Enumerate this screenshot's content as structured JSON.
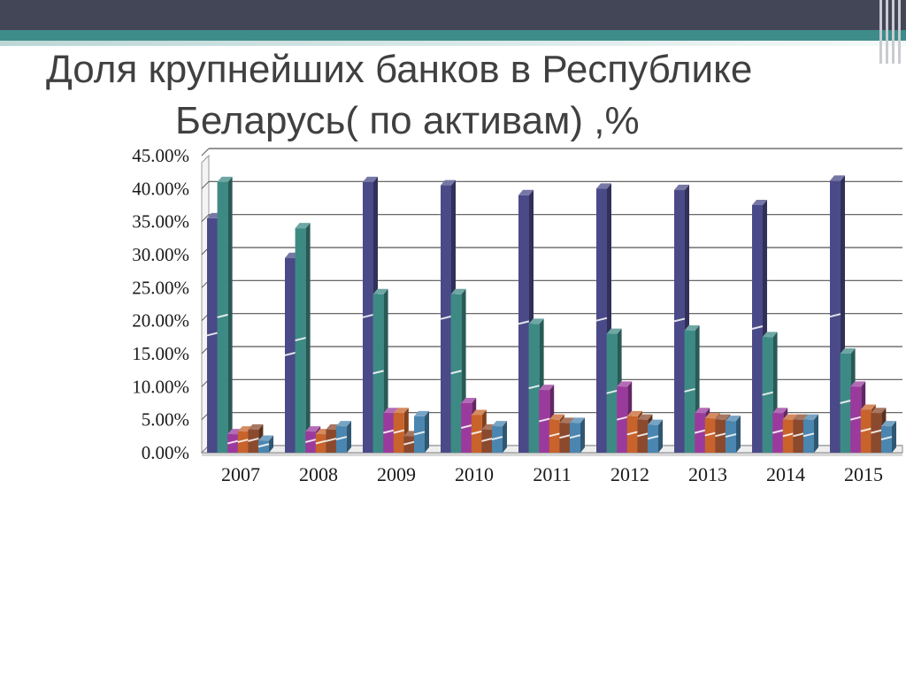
{
  "slide": {
    "title_line1": "Доля крупнейших банков в Республике",
    "title_line2": "Беларусь( по активам) ,%"
  },
  "chart_data": {
    "type": "bar",
    "title": "Доля крупнейших банков в Республике Беларусь( по активам) ,%",
    "categories": [
      "2007",
      "2008",
      "2009",
      "2010",
      "2011",
      "2012",
      "2013",
      "2014",
      "2015"
    ],
    "series": [
      {
        "color": "#4a4a88",
        "values": [
          35.5,
          29.5,
          41.0,
          40.5,
          39.0,
          40.0,
          39.8,
          37.5,
          41.2
        ]
      },
      {
        "color": "#3d8a85",
        "values": [
          41.0,
          34.0,
          24.0,
          24.0,
          19.5,
          18.0,
          18.5,
          17.5,
          15.0
        ]
      },
      {
        "color": "#9b3a9d",
        "values": [
          2.8,
          3.2,
          6.0,
          7.5,
          9.5,
          10.0,
          6.0,
          6.0,
          10.0
        ]
      },
      {
        "color": "#c8632b",
        "values": [
          3.2,
          2.8,
          6.0,
          5.7,
          5.0,
          5.5,
          5.2,
          5.0,
          6.5
        ]
      },
      {
        "color": "#8b4a2e",
        "values": [
          3.5,
          3.5,
          2.5,
          3.5,
          4.5,
          5.0,
          5.0,
          5.0,
          6.0
        ]
      },
      {
        "color": "#4a86b0",
        "values": [
          1.8,
          4.0,
          5.5,
          4.0,
          4.5,
          4.2,
          4.8,
          5.0,
          4.0
        ]
      }
    ],
    "ylim": [
      0,
      45
    ],
    "yticks": [
      "0.00%",
      "5.00%",
      "10.00%",
      "15.00%",
      "20.00%",
      "25.00%",
      "30.00%",
      "35.00%",
      "40.00%",
      "45.00%"
    ],
    "grid": true,
    "legend": "none"
  }
}
